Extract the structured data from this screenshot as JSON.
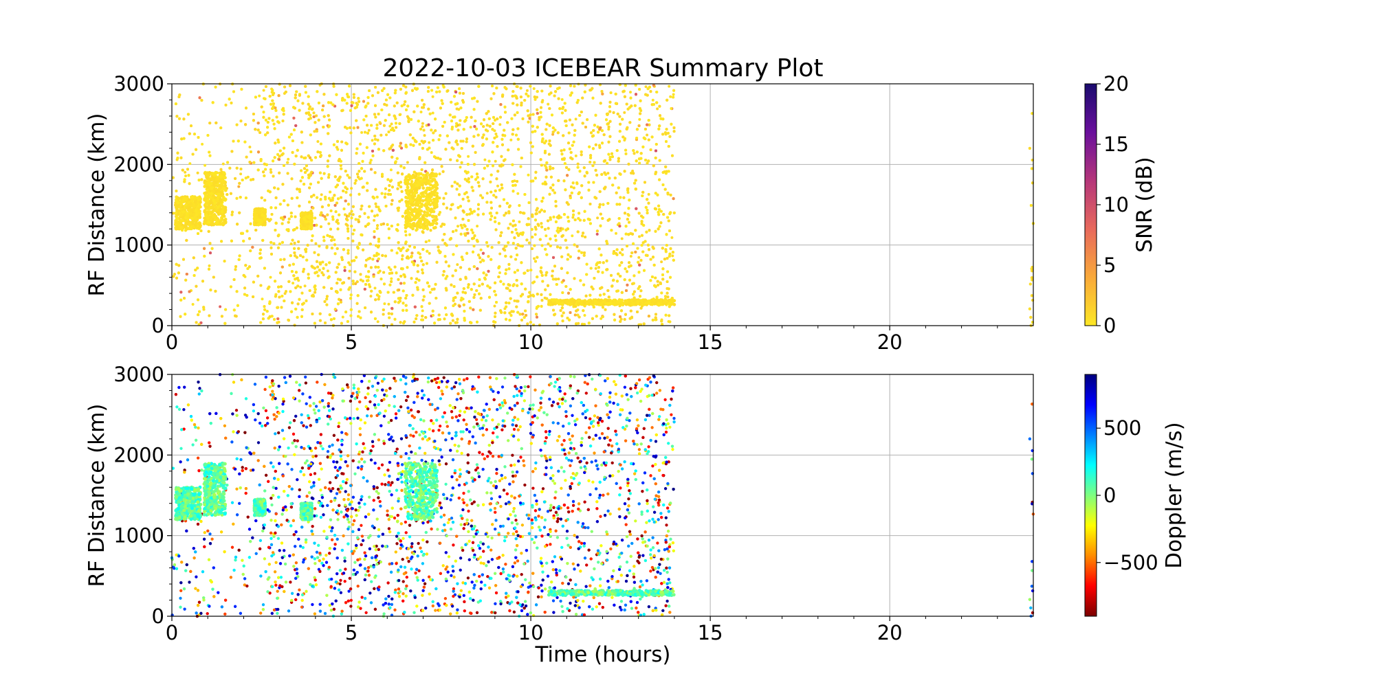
{
  "chart_data": {
    "type": "scatter",
    "title": "2022-10-03 ICEBEAR Summary Plot",
    "xlabel": "Time (hours)",
    "x_ticks": [
      0,
      5,
      10,
      15,
      20
    ],
    "xlim": [
      0,
      24
    ],
    "y_ticks": [
      0,
      1000,
      2000,
      3000
    ],
    "ylim": [
      0,
      3000
    ],
    "grid": true,
    "panels": [
      {
        "ylabel": "RF Distance (km)",
        "color_label": "SNR (dB)",
        "color_ticks": [
          0,
          5,
          10,
          15,
          20
        ],
        "color_range": [
          0,
          20
        ],
        "colormap": [
          "#fde725",
          "#f9a93a",
          "#e8695c",
          "#b5367a",
          "#6a0f9c",
          "#1a0b6e"
        ]
      },
      {
        "ylabel": "RF Distance (km)",
        "color_label": "Doppler (m/s)",
        "color_ticks": [
          -500,
          0,
          500
        ],
        "color_range": [
          -900,
          900
        ],
        "colormap": [
          "#7a0000",
          "#ff0000",
          "#ff8c00",
          "#ffff00",
          "#7fff7f",
          "#00ffff",
          "#0080ff",
          "#0000ff",
          "#00007f"
        ]
      }
    ],
    "clusters": [
      {
        "t_range": [
          0.1,
          0.8
        ],
        "km_range": [
          1200,
          1600
        ]
      },
      {
        "t_range": [
          0.9,
          1.5
        ],
        "km_range": [
          1250,
          1900
        ]
      },
      {
        "t_range": [
          2.3,
          2.6
        ],
        "km_range": [
          1250,
          1450
        ]
      },
      {
        "t_range": [
          3.6,
          3.9
        ],
        "km_range": [
          1200,
          1400
        ]
      },
      {
        "t_range": [
          6.5,
          7.4
        ],
        "km_range": [
          1200,
          1900
        ]
      },
      {
        "t_range": [
          10.5,
          14.0
        ],
        "km_range": [
          260,
          320
        ]
      }
    ],
    "observation_windows": [
      [
        0,
        14
      ],
      [
        23.9,
        24
      ]
    ]
  }
}
